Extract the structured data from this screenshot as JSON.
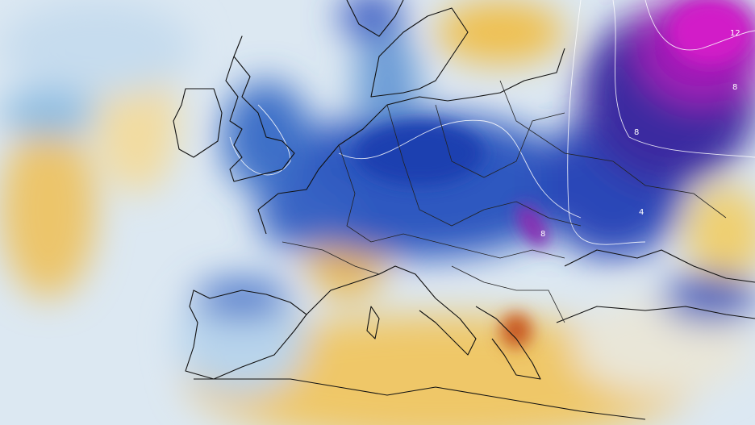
{
  "contour_labels": [
    "12",
    "8",
    "8",
    "4",
    "8"
  ]
}
